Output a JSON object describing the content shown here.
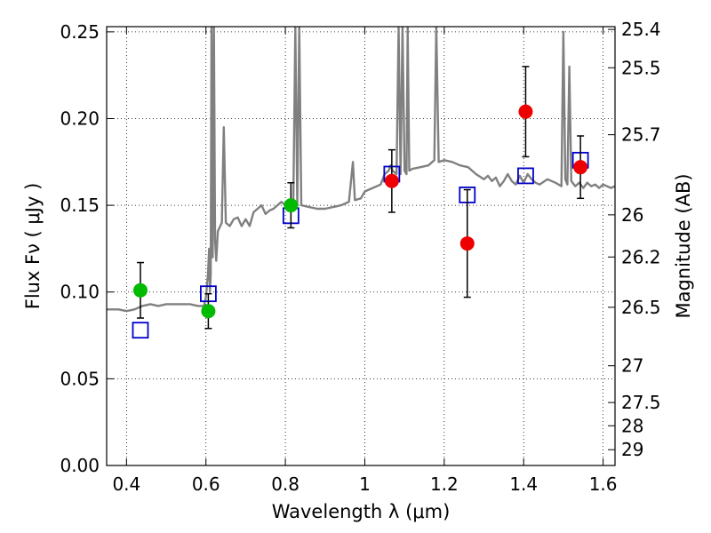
{
  "chart_data": {
    "type": "scatter",
    "xlabel": "Wavelength  λ (μm)",
    "ylabel": "Flux  Fν  ( μJy )",
    "ylabel_right": "Magnitude (AB)",
    "xlim": [
      0.35,
      1.63
    ],
    "ylim": [
      0.0,
      0.253
    ],
    "grid": true,
    "x_ticks": [
      0.4,
      0.6,
      0.8,
      1.0,
      1.2,
      1.4,
      1.6
    ],
    "x_tick_labels": [
      "0.4",
      "0.6",
      "0.8",
      "1",
      "1.2",
      "1.4",
      "1.6"
    ],
    "y_ticks": [
      0.0,
      0.05,
      0.1,
      0.15,
      0.2,
      0.25
    ],
    "y_tick_labels": [
      "0.00",
      "0.05",
      "0.10",
      "0.15",
      "0.20",
      "0.25"
    ],
    "right_ticks": [
      {
        "label": "25.4",
        "flux": 0.2514
      },
      {
        "label": "25.5",
        "flux": 0.2293
      },
      {
        "label": "25.7",
        "flux": 0.1907
      },
      {
        "label": "26",
        "flux": 0.1445
      },
      {
        "label": "26.2",
        "flux": 0.1202
      },
      {
        "label": "26.5",
        "flux": 0.0912
      },
      {
        "label": "27",
        "flux": 0.0575
      },
      {
        "label": "27.5",
        "flux": 0.0363
      },
      {
        "label": "28",
        "flux": 0.0229
      },
      {
        "label": "29",
        "flux": 0.0091
      }
    ],
    "colors": {
      "spectrum": "#808080",
      "green_points": "#00bb00",
      "red_points": "#ee0000",
      "model_squares": "#0000cc",
      "errorbars": "#000000",
      "grid": "#000000"
    },
    "spectrum": [
      [
        0.35,
        0.09
      ],
      [
        0.38,
        0.09
      ],
      [
        0.4,
        0.089
      ],
      [
        0.42,
        0.09
      ],
      [
        0.44,
        0.092
      ],
      [
        0.46,
        0.093
      ],
      [
        0.48,
        0.092
      ],
      [
        0.5,
        0.093
      ],
      [
        0.53,
        0.093
      ],
      [
        0.56,
        0.093
      ],
      [
        0.58,
        0.092
      ],
      [
        0.595,
        0.092
      ],
      [
        0.6,
        0.097
      ],
      [
        0.605,
        0.11
      ],
      [
        0.608,
        0.125
      ],
      [
        0.61,
        0.1
      ],
      [
        0.612,
        0.11
      ],
      [
        0.614,
        0.253
      ],
      [
        0.617,
        0.12
      ],
      [
        0.62,
        0.253
      ],
      [
        0.623,
        0.13
      ],
      [
        0.626,
        0.118
      ],
      [
        0.63,
        0.135
      ],
      [
        0.64,
        0.14
      ],
      [
        0.645,
        0.195
      ],
      [
        0.65,
        0.14
      ],
      [
        0.66,
        0.138
      ],
      [
        0.67,
        0.142
      ],
      [
        0.68,
        0.143
      ],
      [
        0.69,
        0.138
      ],
      [
        0.7,
        0.142
      ],
      [
        0.71,
        0.138
      ],
      [
        0.72,
        0.146
      ],
      [
        0.73,
        0.148
      ],
      [
        0.74,
        0.15
      ],
      [
        0.75,
        0.145
      ],
      [
        0.76,
        0.147
      ],
      [
        0.77,
        0.148
      ],
      [
        0.78,
        0.15
      ],
      [
        0.79,
        0.152
      ],
      [
        0.8,
        0.15
      ],
      [
        0.81,
        0.151
      ],
      [
        0.815,
        0.149
      ],
      [
        0.82,
        0.15
      ],
      [
        0.825,
        0.253
      ],
      [
        0.83,
        0.15
      ],
      [
        0.835,
        0.253
      ],
      [
        0.84,
        0.15
      ],
      [
        0.86,
        0.149
      ],
      [
        0.88,
        0.148
      ],
      [
        0.9,
        0.148
      ],
      [
        0.92,
        0.149
      ],
      [
        0.94,
        0.15
      ],
      [
        0.96,
        0.152
      ],
      [
        0.97,
        0.175
      ],
      [
        0.975,
        0.153
      ],
      [
        0.99,
        0.154
      ],
      [
        1.0,
        0.158
      ],
      [
        1.02,
        0.16
      ],
      [
        1.04,
        0.162
      ],
      [
        1.05,
        0.168
      ],
      [
        1.06,
        0.17
      ],
      [
        1.065,
        0.173
      ],
      [
        1.07,
        0.17
      ],
      [
        1.08,
        0.168
      ],
      [
        1.085,
        0.253
      ],
      [
        1.09,
        0.168
      ],
      [
        1.095,
        0.253
      ],
      [
        1.1,
        0.17
      ],
      [
        1.105,
        0.168
      ],
      [
        1.108,
        0.253
      ],
      [
        1.112,
        0.17
      ],
      [
        1.12,
        0.171
      ],
      [
        1.14,
        0.172
      ],
      [
        1.16,
        0.173
      ],
      [
        1.175,
        0.176
      ],
      [
        1.18,
        0.253
      ],
      [
        1.186,
        0.175
      ],
      [
        1.2,
        0.176
      ],
      [
        1.22,
        0.175
      ],
      [
        1.24,
        0.173
      ],
      [
        1.26,
        0.172
      ],
      [
        1.28,
        0.168
      ],
      [
        1.3,
        0.165
      ],
      [
        1.31,
        0.167
      ],
      [
        1.32,
        0.164
      ],
      [
        1.33,
        0.166
      ],
      [
        1.34,
        0.161
      ],
      [
        1.35,
        0.164
      ],
      [
        1.36,
        0.168
      ],
      [
        1.37,
        0.164
      ],
      [
        1.38,
        0.162
      ],
      [
        1.39,
        0.167
      ],
      [
        1.4,
        0.163
      ],
      [
        1.41,
        0.168
      ],
      [
        1.42,
        0.165
      ],
      [
        1.43,
        0.163
      ],
      [
        1.44,
        0.162
      ],
      [
        1.46,
        0.165
      ],
      [
        1.48,
        0.163
      ],
      [
        1.495,
        0.161
      ],
      [
        1.5,
        0.25
      ],
      [
        1.505,
        0.165
      ],
      [
        1.51,
        0.162
      ],
      [
        1.515,
        0.23
      ],
      [
        1.52,
        0.164
      ],
      [
        1.53,
        0.161
      ],
      [
        1.54,
        0.163
      ],
      [
        1.55,
        0.16
      ],
      [
        1.56,
        0.163
      ],
      [
        1.57,
        0.161
      ],
      [
        1.58,
        0.162
      ],
      [
        1.59,
        0.16
      ],
      [
        1.6,
        0.162
      ],
      [
        1.62,
        0.16
      ],
      [
        1.63,
        0.161
      ]
    ],
    "observed_green": [
      {
        "x": 0.435,
        "y": 0.101,
        "err": 0.016
      },
      {
        "x": 0.606,
        "y": 0.089,
        "err": 0.01
      },
      {
        "x": 0.814,
        "y": 0.15,
        "err": 0.013
      }
    ],
    "observed_red": [
      {
        "x": 1.068,
        "y": 0.164,
        "err": 0.018
      },
      {
        "x": 1.258,
        "y": 0.128,
        "err": 0.031
      },
      {
        "x": 1.405,
        "y": 0.204,
        "err": 0.026
      },
      {
        "x": 1.543,
        "y": 0.172,
        "err": 0.018
      }
    ],
    "model_points": [
      {
        "x": 0.435,
        "y": 0.078
      },
      {
        "x": 0.606,
        "y": 0.099
      },
      {
        "x": 0.814,
        "y": 0.144
      },
      {
        "x": 1.068,
        "y": 0.168
      },
      {
        "x": 1.258,
        "y": 0.156
      },
      {
        "x": 1.405,
        "y": 0.167
      },
      {
        "x": 1.543,
        "y": 0.176
      }
    ]
  }
}
